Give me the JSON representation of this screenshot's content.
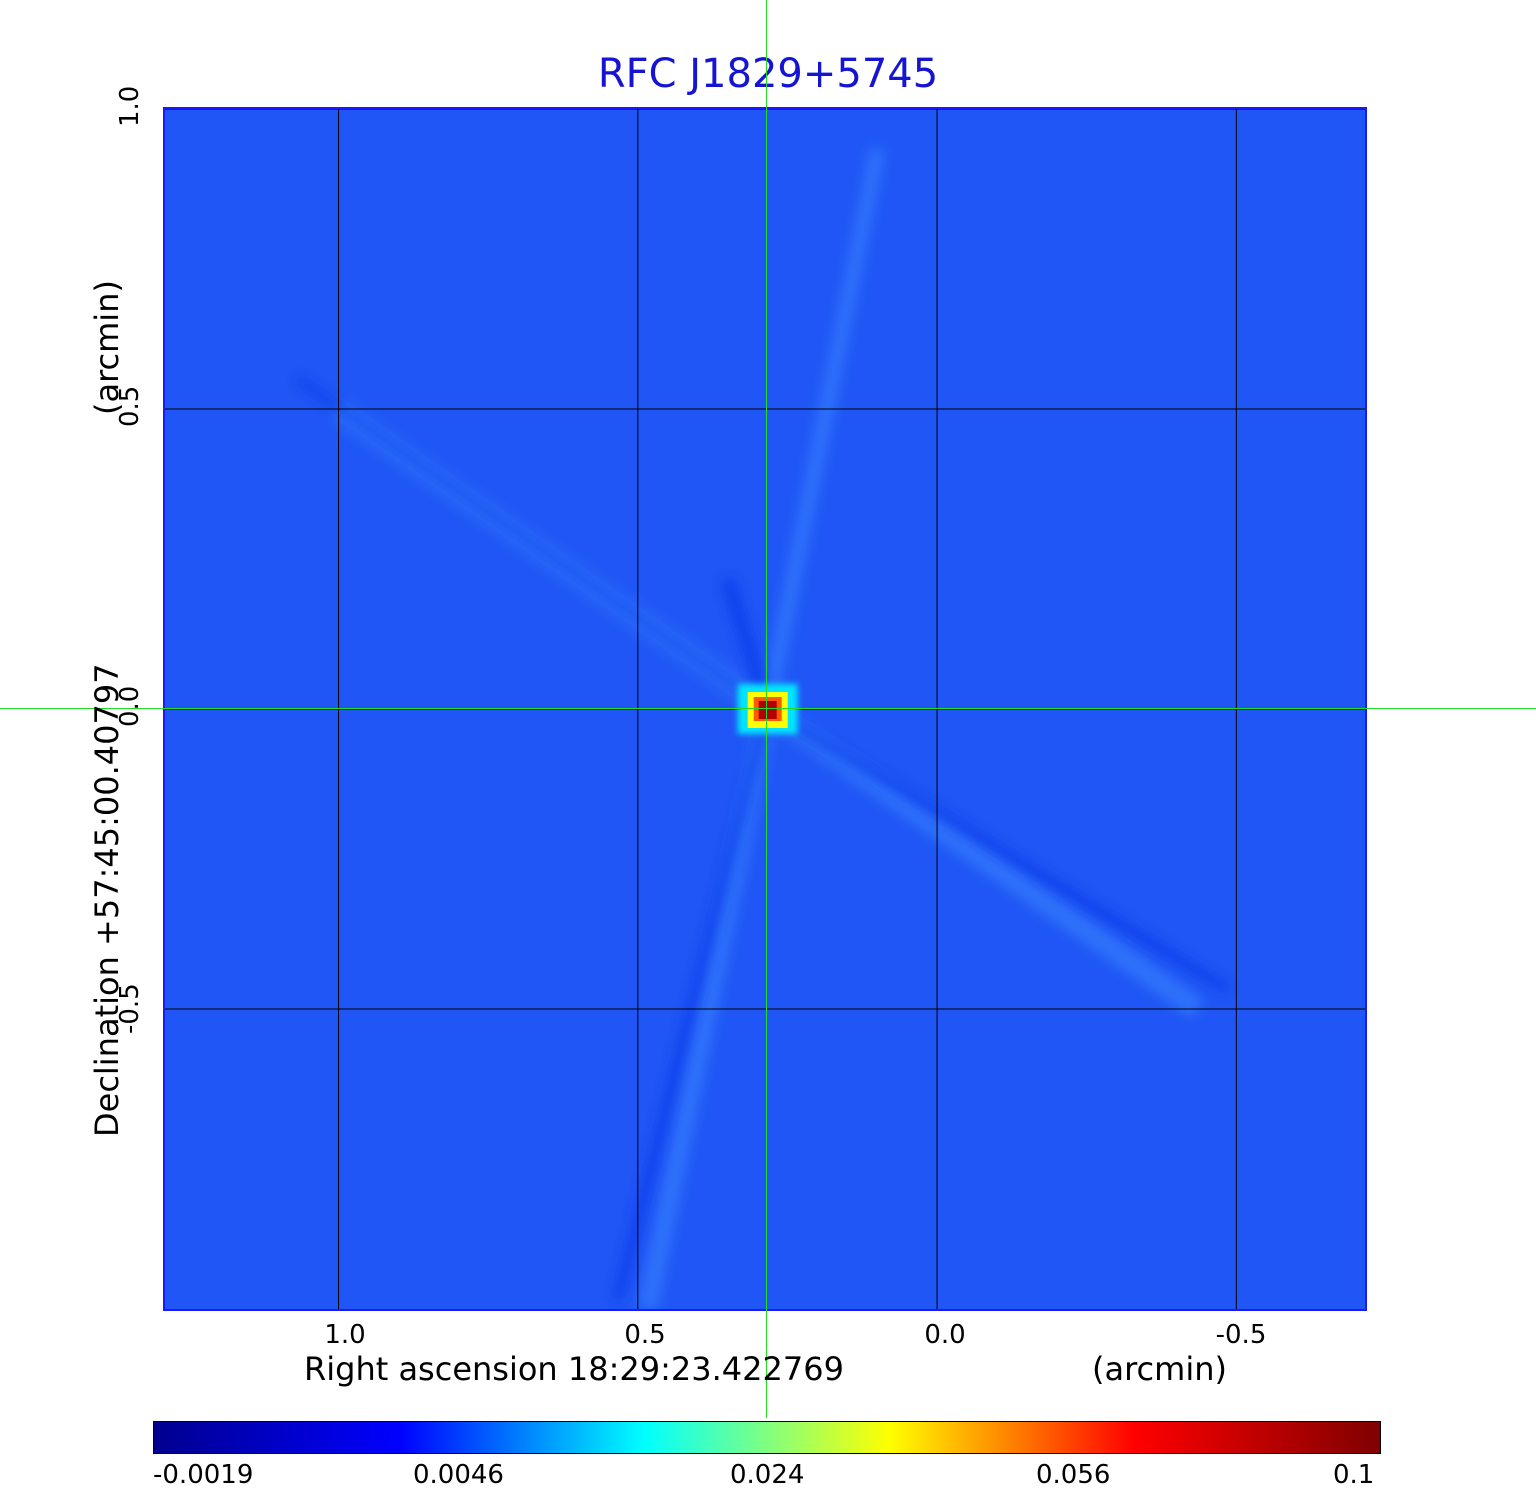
{
  "chart_data": {
    "type": "heatmap",
    "title": "RFC J1829+5745",
    "xlabel": "Right ascension  18:29:23.422769",
    "xunit": "(arcmin)",
    "ylabel": "Declination  +57:45:00.40797",
    "yunit": "(arcmin)",
    "x_ticks": [
      "1.0",
      "0.5",
      "0.0",
      "-0.5"
    ],
    "x_tick_values": [
      1.0,
      0.5,
      0.0,
      -0.5
    ],
    "y_ticks": [
      "1.0",
      "0.5",
      "0.0",
      "-0.5"
    ],
    "y_tick_values": [
      1.0,
      0.5,
      0.0,
      -0.5
    ],
    "xlim": [
      1.29,
      -0.715
    ],
    "ylim": [
      -1.0,
      1.0
    ],
    "grid": true,
    "crosshair": {
      "x": 0.283,
      "y": 0.0
    },
    "source": {
      "x": 0.283,
      "y": 0.0,
      "peak": 0.1
    },
    "colorbar": {
      "ticks": [
        "-0.0019",
        "0.0046",
        "0.024",
        "0.056",
        "0.1"
      ],
      "tick_values": [
        -0.0019,
        0.0046,
        0.024,
        0.056,
        0.1
      ],
      "colormap": "jet",
      "colors": [
        "#00008f",
        "#0000ff",
        "#00ffff",
        "#ffff00",
        "#ff0000",
        "#800000"
      ]
    },
    "background_color": "#1f56f5"
  }
}
